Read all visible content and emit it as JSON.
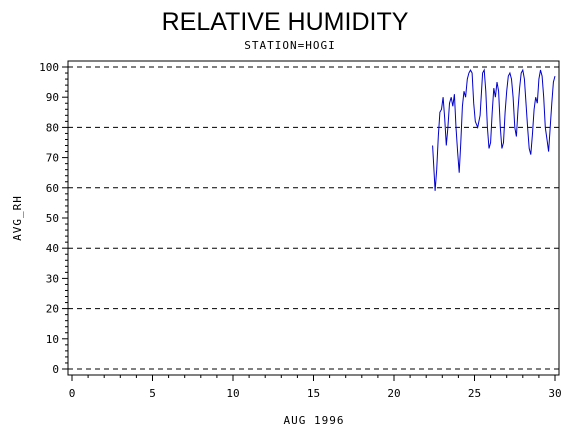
{
  "chart_data": {
    "type": "line",
    "title": "RELATIVE HUMIDITY",
    "subtitle": "STATION=HOGI",
    "xlabel": "AUG 1996",
    "ylabel": "AVG_RH",
    "xlim": [
      0,
      30
    ],
    "ylim": [
      0,
      100
    ],
    "x_ticks": [
      0,
      5,
      10,
      15,
      20,
      25,
      30
    ],
    "y_ticks": [
      0,
      10,
      20,
      30,
      40,
      50,
      60,
      70,
      80,
      90,
      100
    ],
    "gridlines_y": [
      0,
      20,
      40,
      60,
      80,
      100
    ],
    "grid_style": "dashed",
    "series_color": "#0000cc",
    "series": [
      {
        "x": [
          22.4,
          22.55,
          22.65,
          22.75,
          22.85,
          22.95,
          23.05,
          23.15,
          23.25,
          23.35,
          23.45,
          23.55,
          23.65,
          23.75,
          23.85,
          23.95,
          24.05,
          24.15,
          24.25,
          24.35,
          24.45,
          24.55,
          24.65,
          24.75,
          24.85,
          24.95,
          25.05,
          25.2,
          25.35,
          25.5,
          25.6,
          25.7,
          25.8,
          25.9,
          26.0,
          26.1,
          26.2,
          26.3,
          26.4,
          26.5,
          26.6,
          26.7,
          26.8,
          26.9,
          27.0,
          27.1,
          27.2,
          27.3,
          27.4,
          27.5,
          27.6,
          27.7,
          27.8,
          27.9,
          28.0,
          28.1,
          28.2,
          28.3,
          28.4,
          28.5,
          28.6,
          28.7,
          28.8,
          28.9,
          29.0,
          29.1,
          29.2,
          29.3,
          29.4,
          29.5,
          29.6,
          29.7,
          29.8,
          29.9,
          30.0
        ],
        "y": [
          74,
          59,
          66,
          77,
          85,
          86,
          90,
          83,
          74,
          80,
          88,
          90,
          87,
          91,
          80,
          72,
          65,
          75,
          87,
          92,
          90,
          96,
          98,
          99,
          98,
          88,
          82,
          80,
          84,
          98,
          99,
          92,
          80,
          73,
          75,
          85,
          93,
          90,
          95,
          92,
          80,
          73,
          75,
          85,
          92,
          97,
          98,
          96,
          90,
          80,
          77,
          86,
          93,
          98,
          99,
          96,
          88,
          80,
          73,
          71,
          78,
          86,
          90,
          88,
          96,
          99,
          97,
          90,
          80,
          76,
          72,
          80,
          88,
          95,
          97
        ]
      }
    ]
  }
}
